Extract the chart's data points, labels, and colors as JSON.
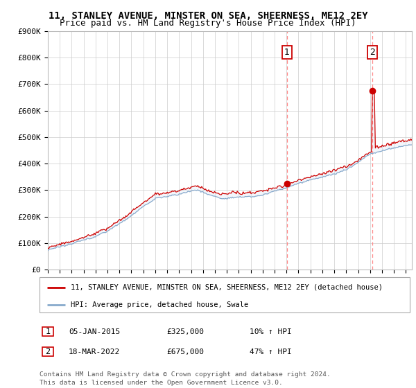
{
  "title": "11, STANLEY AVENUE, MINSTER ON SEA, SHEERNESS, ME12 2EY",
  "subtitle": "Price paid vs. HM Land Registry's House Price Index (HPI)",
  "ylim": [
    0,
    900000
  ],
  "yticks": [
    0,
    100000,
    200000,
    300000,
    400000,
    500000,
    600000,
    700000,
    800000,
    900000
  ],
  "ytick_labels": [
    "£0",
    "£100K",
    "£200K",
    "£300K",
    "£400K",
    "£500K",
    "£600K",
    "£700K",
    "£800K",
    "£900K"
  ],
  "xlim_start": 1995.0,
  "xlim_end": 2025.5,
  "xticks": [
    1995,
    1996,
    1997,
    1998,
    1999,
    2000,
    2001,
    2002,
    2003,
    2004,
    2005,
    2006,
    2007,
    2008,
    2009,
    2010,
    2011,
    2012,
    2013,
    2014,
    2015,
    2016,
    2017,
    2018,
    2019,
    2020,
    2021,
    2022,
    2023,
    2024,
    2025
  ],
  "background_color": "#ffffff",
  "plot_bg_color": "#ffffff",
  "grid_color": "#cccccc",
  "red_line_color": "#cc0000",
  "blue_line_color": "#88aacc",
  "fill_color": "#dde8f5",
  "vline_color": "#ff8888",
  "point1_x": 2015.02,
  "point1_y": 325000,
  "point2_x": 2022.21,
  "point2_y": 675000,
  "legend_red_label": "11, STANLEY AVENUE, MINSTER ON SEA, SHEERNESS, ME12 2EY (detached house)",
  "legend_blue_label": "HPI: Average price, detached house, Swale",
  "table_row1": [
    "1",
    "05-JAN-2015",
    "£325,000",
    "10% ↑ HPI"
  ],
  "table_row2": [
    "2",
    "18-MAR-2022",
    "£675,000",
    "47% ↑ HPI"
  ],
  "footer": "Contains HM Land Registry data © Crown copyright and database right 2024.\nThis data is licensed under the Open Government Licence v3.0.",
  "title_fontsize": 10,
  "subtitle_fontsize": 9,
  "tick_fontsize": 8,
  "legend_fontsize": 7.5,
  "table_fontsize": 8
}
